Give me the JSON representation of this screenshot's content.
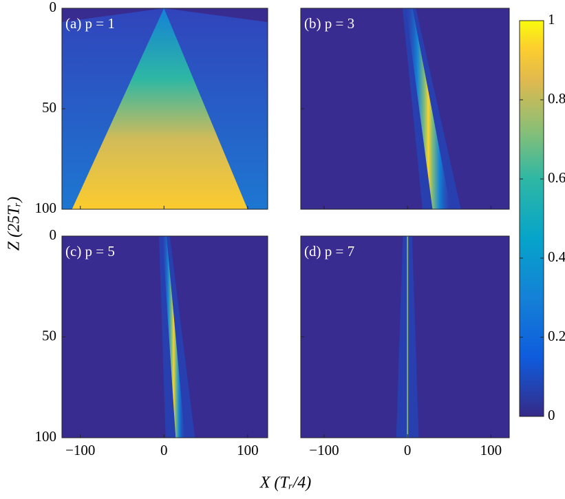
{
  "chart_data": [
    {
      "type": "heatmap",
      "title": "(a) p = 1",
      "xlim": [
        -122,
        124
      ],
      "ylim": [
        0,
        100
      ],
      "yreverse": true,
      "xticks": [
        {
          "value": -100,
          "label": "−100"
        },
        0,
        100
      ],
      "yticks": [
        0,
        50,
        100
      ]
    },
    {
      "type": "heatmap",
      "title": "(b) p = 3",
      "xlim": [
        -128,
        122
      ],
      "ylim": [
        0,
        100
      ],
      "yreverse": true,
      "xticks": [
        {
          "value": -100,
          "label": "−100"
        },
        0,
        100
      ],
      "yticks": [
        0,
        50,
        100
      ]
    },
    {
      "type": "heatmap",
      "title": "(c) p = 5",
      "xlim": [
        -122,
        124
      ],
      "ylim": [
        0,
        100
      ],
      "yreverse": true,
      "xticks": [
        {
          "value": -100,
          "label": "−100"
        },
        0,
        100
      ],
      "yticks": [
        0,
        50,
        100
      ]
    },
    {
      "type": "heatmap",
      "title": "(d) p = 7",
      "xlim": [
        -128,
        122
      ],
      "ylim": [
        0,
        100
      ],
      "yreverse": true,
      "xticks": [
        {
          "value": -100,
          "label": "−100"
        },
        0,
        100
      ],
      "yticks": [
        0,
        50,
        100
      ]
    }
  ],
  "xlabel": "X (Tᵣ/4)",
  "ylabel": "Z (25Tᵣ)",
  "colorbar": {
    "lim": [
      0,
      1
    ],
    "ticks": [
      0,
      0.2,
      0.4,
      0.6,
      0.8,
      1
    ]
  }
}
